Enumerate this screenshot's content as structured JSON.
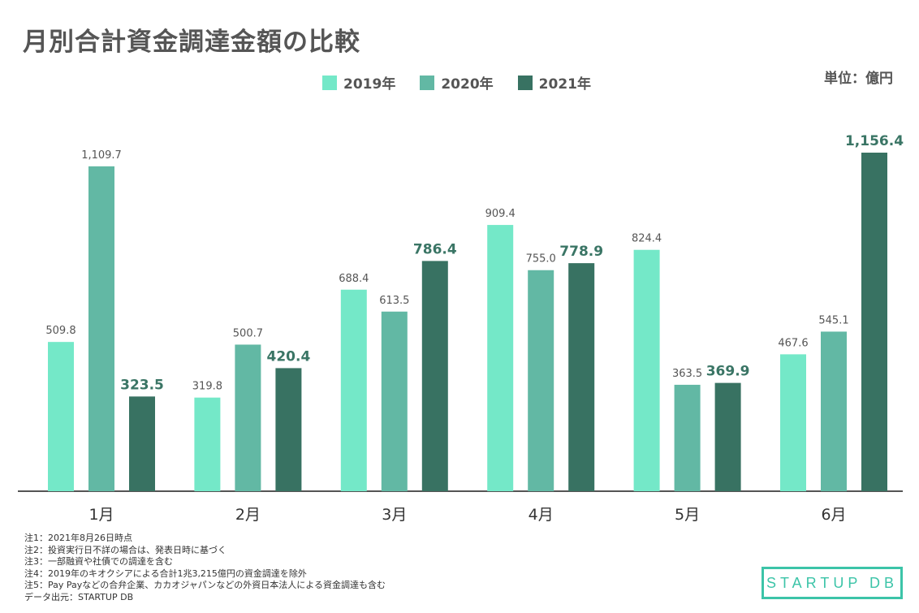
{
  "title": "月別合計資金調達金額の比較",
  "unit_label": "単位：億円",
  "colors": {
    "2019年": "#74e8c8",
    "2020年": "#62b8a4",
    "2021年": "#387262"
  },
  "chart_data": {
    "type": "bar",
    "title": "月別合計資金調達金額の比較",
    "categories": [
      "1月",
      "2月",
      "3月",
      "4月",
      "5月",
      "6月"
    ],
    "series": [
      {
        "name": "2019年",
        "values": [
          509.8,
          319.8,
          688.4,
          909.4,
          824.4,
          467.6
        ],
        "labels": [
          "509.8",
          "319.8",
          "688.4",
          "909.4",
          "824.4",
          "467.6"
        ]
      },
      {
        "name": "2020年",
        "values": [
          1109.7,
          500.7,
          613.5,
          755.0,
          363.5,
          545.1
        ],
        "labels": [
          "1,109.7",
          "500.7",
          "613.5",
          "755.0",
          "363.5",
          "545.1"
        ]
      },
      {
        "name": "2021年",
        "values": [
          323.5,
          420.4,
          786.4,
          778.9,
          369.9,
          1156.4
        ],
        "labels": [
          "323.5",
          "420.4",
          "786.4",
          "778.9",
          "369.9",
          "1,156.4"
        ]
      }
    ],
    "ylim": [
      0,
      1156.4
    ],
    "grid": false,
    "legend": "top-center"
  },
  "notes": [
    "注1：2021年8月26日時点",
    "注2：投資実行日不詳の場合は、発表日時に基づく",
    "注3：一部融資や社債での調達を含む",
    "注4：2019年のキオクシアによる合計1兆3,215億円の資金調達を除外",
    "注5：Pay Payなどの合弁企業、カカオジャパンなどの外資日本法人による資金調達も含む",
    "データ出元：STARTUP DB"
  ],
  "logo": "STARTUP DB"
}
